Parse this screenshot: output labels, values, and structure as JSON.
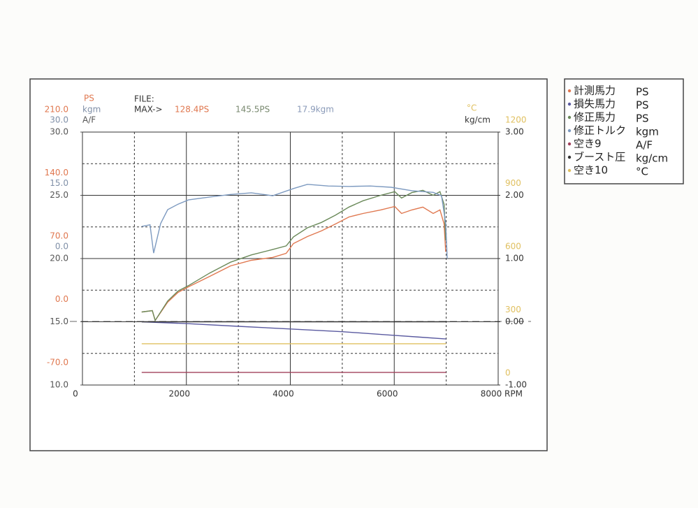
{
  "chart_data": {
    "type": "line",
    "file_label": "FILE:",
    "max_label": "MAX->",
    "max_readouts": [
      {
        "value": 128.4,
        "label": "128.4PS",
        "color": "#e07850"
      },
      {
        "value": 145.5,
        "label": "145.5PS",
        "color": "#7a8a70"
      },
      {
        "value": 17.9,
        "label": "17.9kgm",
        "color": "#8a9ab8"
      }
    ],
    "xlim": [
      0,
      8000
    ],
    "xticks": [
      0,
      2000,
      4000,
      6000,
      8000
    ],
    "xlabel": "RPM",
    "y_axes": [
      {
        "unit": "PS",
        "side": "left",
        "color": "#e07850",
        "ylim": [
          -70,
          210
        ],
        "yticks": [
          {
            "value": 210,
            "label": "210.0"
          },
          {
            "value": 140,
            "label": "140.0"
          },
          {
            "value": 70,
            "label": "70.0"
          },
          {
            "value": 0,
            "label": "0.0"
          },
          {
            "value": -70,
            "label": "-70.0"
          }
        ]
      },
      {
        "unit": "kgm",
        "side": "left",
        "color": "#8090a8",
        "ylim": [
          -30,
          30
        ],
        "yticks": [
          {
            "value": 30,
            "label": "30.0"
          },
          {
            "value": 15,
            "label": "15.0"
          },
          {
            "value": 0,
            "label": "0.0"
          }
        ]
      },
      {
        "unit": "A/F",
        "side": "left",
        "color": "#555555",
        "ylim": [
          10,
          30
        ],
        "yticks": [
          {
            "value": 30,
            "label": "30.0"
          },
          {
            "value": 25,
            "label": "25.0"
          },
          {
            "value": 20,
            "label": "20.0"
          },
          {
            "value": 15,
            "label": "15.0"
          },
          {
            "value": 10,
            "label": "10.0"
          }
        ]
      },
      {
        "unit": "°C",
        "side": "right",
        "color": "#e0c060",
        "ylim": [
          0,
          1200
        ],
        "yticks": [
          1200,
          900,
          600,
          300,
          0
        ]
      },
      {
        "unit": "kg/cm",
        "side": "right",
        "color": "#333333",
        "ylim": [
          -1,
          3
        ],
        "yticks": [
          {
            "value": 3,
            "label": "3.00"
          },
          {
            "value": 2,
            "label": "2.00"
          },
          {
            "value": 1,
            "label": "1.00"
          },
          {
            "value": 0,
            "label": "0.00"
          },
          {
            "value": -1,
            "label": "-1.00"
          }
        ]
      }
    ],
    "grid": true,
    "series": [
      {
        "name": "計測馬力",
        "unit": "PS",
        "color": "#e07850",
        "x": [
          1140,
          1345,
          1400,
          1640,
          1840,
          2040,
          2450,
          2850,
          3250,
          3660,
          3920,
          4060,
          4330,
          4600,
          4870,
          5130,
          5400,
          5740,
          6010,
          6140,
          6340,
          6550,
          6750,
          6880,
          6960,
          6990
        ],
        "values": [
          10.8,
          12.4,
          1.5,
          21.7,
          32.5,
          38.7,
          50.3,
          61.9,
          68.1,
          71.2,
          75.8,
          86.6,
          94.4,
          100.6,
          108.3,
          116,
          119.9,
          123.8,
          127.6,
          119.9,
          123.8,
          126.9,
          119.9,
          123.8,
          108.3,
          77.4
        ]
      },
      {
        "name": "損失馬力",
        "unit": "PS",
        "color": "#5a5aa0",
        "x": [
          1140,
          2000,
          3000,
          4000,
          5000,
          5500,
          6000,
          6500,
          7000
        ],
        "values": [
          0,
          -2,
          -5,
          -8,
          -11,
          -13,
          -15,
          -17,
          -19
        ]
      },
      {
        "name": "修正馬力",
        "unit": "PS",
        "color": "#6b8a5a",
        "x": [
          1140,
          1345,
          1400,
          1640,
          1840,
          2040,
          2450,
          2850,
          3250,
          3660,
          3920,
          4060,
          4330,
          4600,
          4870,
          5130,
          5400,
          5740,
          6010,
          6140,
          6340,
          6550,
          6750,
          6880,
          6960,
          6990
        ],
        "values": [
          10.8,
          12.4,
          1.5,
          23,
          34,
          40,
          54,
          66,
          74,
          80,
          84,
          94,
          104,
          110,
          118,
          127,
          134,
          140,
          144,
          137,
          143,
          145.5,
          140,
          144,
          130,
          90
        ]
      },
      {
        "name": "修正トルク",
        "unit": "kgm",
        "color": "#7d9ac0",
        "x": [
          1140,
          1300,
          1370,
          1505,
          1640,
          1840,
          2040,
          2450,
          2850,
          3250,
          3660,
          4060,
          4330,
          4730,
          5130,
          5540,
          5940,
          6340,
          6750,
          6910,
          6990,
          7020
        ],
        "values": [
          7.6,
          8,
          1.3,
          8.3,
          11.6,
          12.9,
          13.9,
          14.6,
          15.2,
          15.6,
          14.9,
          16.6,
          17.6,
          17.2,
          17.1,
          17.2,
          16.9,
          16.1,
          15.7,
          14.9,
          8.3,
          0
        ]
      },
      {
        "name": "空き9",
        "unit": "A/F",
        "color": "#a0405a",
        "x": [
          1140,
          7000
        ],
        "values": [
          11,
          11
        ]
      },
      {
        "name": "ブースト圧",
        "unit": "kg/cm",
        "color": "#333333",
        "x": [
          1140,
          7000
        ],
        "values": [
          0,
          0
        ]
      },
      {
        "name": "空き10",
        "unit": "°C",
        "color": "#e0c060",
        "x": [
          1140,
          7000
        ],
        "values": [
          196,
          196
        ]
      }
    ]
  }
}
